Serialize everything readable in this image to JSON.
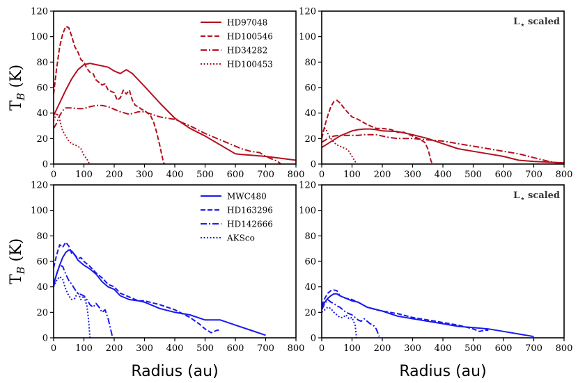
{
  "figure": {
    "xlabel": "Radius (au)",
    "ylabel_main": "T",
    "ylabel_sub": "B",
    "ylabel_unit": " (K)",
    "scaled_note": "L",
    "scaled_note_sub": "⋆",
    "scaled_note_suffix": " scaled"
  },
  "chart_data": [
    {
      "id": "top-left",
      "type": "line",
      "row": 0,
      "col": 0,
      "color": "#b3101e",
      "scaled": false,
      "show_legend": true,
      "xlim": [
        0,
        800
      ],
      "ylim": [
        0,
        120
      ],
      "xticks": [
        0,
        100,
        200,
        300,
        400,
        500,
        600,
        700,
        800
      ],
      "yticks": [
        0,
        20,
        40,
        60,
        80,
        100,
        120
      ],
      "series": [
        {
          "name": "HD97048",
          "dash": "solid",
          "x": [
            0,
            20,
            40,
            60,
            80,
            100,
            120,
            140,
            160,
            180,
            200,
            220,
            240,
            260,
            280,
            300,
            350,
            400,
            450,
            500,
            550,
            600,
            620,
            650,
            700,
            750,
            800
          ],
          "y": [
            38,
            48,
            58,
            67,
            74,
            78,
            79,
            78,
            77,
            76,
            73,
            71,
            74,
            71,
            66,
            61,
            48,
            36,
            28,
            22,
            15,
            8,
            7.5,
            7,
            6,
            4.5,
            3
          ]
        },
        {
          "name": "HD100546",
          "dash": "dashed",
          "x": [
            0,
            10,
            20,
            30,
            40,
            50,
            60,
            70,
            80,
            90,
            100,
            110,
            120,
            130,
            140,
            150,
            160,
            170,
            180,
            190,
            200,
            210,
            220,
            230,
            240,
            250,
            260,
            270,
            280,
            290,
            300,
            310,
            320,
            330,
            340,
            350,
            360,
            365
          ],
          "y": [
            55,
            75,
            92,
            102,
            108,
            107,
            100,
            92,
            88,
            82,
            80,
            75,
            72,
            71,
            66,
            64,
            62,
            63,
            58,
            57,
            56,
            50,
            52,
            58,
            55,
            58,
            50,
            46,
            45,
            43,
            42,
            40,
            38,
            33,
            25,
            15,
            4,
            0
          ]
        },
        {
          "name": "HD34282",
          "dash": "dashdot",
          "x": [
            0,
            10,
            20,
            30,
            40,
            60,
            80,
            100,
            120,
            140,
            160,
            180,
            200,
            220,
            250,
            280,
            300,
            350,
            400,
            450,
            500,
            550,
            600,
            620,
            650,
            680,
            700,
            720,
            740,
            750
          ],
          "y": [
            28,
            32,
            38,
            42,
            44,
            44,
            43.5,
            43.5,
            45,
            46,
            46,
            45,
            43,
            41,
            39,
            41,
            41,
            37,
            35,
            30,
            24,
            19,
            14,
            12,
            10,
            9,
            6,
            4,
            2,
            0
          ]
        },
        {
          "name": "HD100453",
          "dash": "dotted",
          "x": [
            0,
            5,
            10,
            15,
            20,
            25,
            30,
            40,
            50,
            60,
            70,
            80,
            90,
            100,
            110,
            115,
            120
          ],
          "y": [
            34,
            37,
            40,
            38,
            35,
            30,
            26,
            22,
            18,
            16,
            15,
            14,
            12,
            7,
            4,
            1.5,
            0
          ]
        }
      ]
    },
    {
      "id": "top-right",
      "type": "line",
      "row": 0,
      "col": 1,
      "color": "#b3101e",
      "scaled": true,
      "show_legend": false,
      "xlim": [
        0,
        800
      ],
      "ylim": [
        0,
        120
      ],
      "xticks": [
        0,
        100,
        200,
        300,
        400,
        500,
        600,
        700,
        800
      ],
      "yticks": [
        0,
        20,
        40,
        60,
        80,
        100,
        120
      ],
      "series": [
        {
          "name": "HD97048",
          "dash": "solid",
          "x": [
            0,
            20,
            40,
            60,
            80,
            100,
            120,
            140,
            160,
            180,
            200,
            250,
            300,
            350,
            400,
            450,
            500,
            550,
            600,
            650,
            700,
            750,
            800
          ],
          "y": [
            13,
            16,
            19,
            22,
            24,
            26,
            27,
            27.5,
            27.5,
            27,
            26,
            25.5,
            23,
            20,
            16,
            12,
            10,
            8,
            6,
            3,
            2,
            1.5,
            1
          ]
        },
        {
          "name": "HD100546",
          "dash": "dashed",
          "x": [
            0,
            10,
            20,
            30,
            40,
            50,
            60,
            80,
            100,
            120,
            150,
            180,
            200,
            230,
            250,
            270,
            300,
            320,
            340,
            350,
            355,
            360,
            365
          ],
          "y": [
            20,
            30,
            38,
            45,
            49,
            50,
            48,
            42,
            37,
            35,
            31,
            28,
            28,
            27,
            25,
            25,
            22,
            20,
            17,
            12,
            8,
            3,
            0
          ]
        },
        {
          "name": "HD34282",
          "dash": "dashdot",
          "x": [
            0,
            20,
            40,
            60,
            80,
            100,
            120,
            140,
            160,
            180,
            200,
            220,
            250,
            280,
            300,
            350,
            400,
            450,
            500,
            550,
            600,
            650,
            700,
            750,
            800
          ],
          "y": [
            17,
            20,
            22,
            22.5,
            22.5,
            22.5,
            22.5,
            23,
            23,
            23,
            22,
            21,
            20,
            20,
            20,
            19,
            18,
            16,
            14,
            12,
            10,
            8,
            5,
            2,
            0
          ]
        },
        {
          "name": "HD100453",
          "dash": "dotted",
          "x": [
            0,
            5,
            10,
            15,
            20,
            25,
            30,
            40,
            50,
            60,
            70,
            80,
            90,
            100,
            110,
            115
          ],
          "y": [
            23,
            26,
            28,
            27,
            24,
            22,
            20,
            17,
            15,
            14,
            13,
            12,
            10,
            6,
            2,
            0
          ]
        }
      ]
    },
    {
      "id": "bottom-left",
      "type": "line",
      "row": 1,
      "col": 0,
      "color": "#1a1aee",
      "scaled": false,
      "show_legend": true,
      "xlim": [
        0,
        800
      ],
      "ylim": [
        0,
        120
      ],
      "xticks": [
        0,
        100,
        200,
        300,
        400,
        500,
        600,
        700,
        800
      ],
      "yticks": [
        0,
        20,
        40,
        60,
        80,
        100,
        120
      ],
      "series": [
        {
          "name": "MWC480",
          "dash": "solid",
          "x": [
            0,
            10,
            20,
            30,
            40,
            50,
            60,
            70,
            80,
            100,
            120,
            140,
            160,
            180,
            200,
            220,
            250,
            280,
            300,
            350,
            400,
            450,
            500,
            550,
            600,
            650,
            700
          ],
          "y": [
            42,
            50,
            57,
            63,
            67,
            69,
            68,
            65,
            61,
            57,
            54,
            50,
            44,
            40,
            38,
            33,
            30,
            29,
            28,
            23,
            20,
            18,
            14,
            14,
            10,
            6,
            2
          ]
        },
        {
          "name": "HD163296",
          "dash": "dashed",
          "x": [
            0,
            10,
            20,
            30,
            40,
            50,
            60,
            70,
            80,
            90,
            100,
            120,
            140,
            160,
            180,
            200,
            220,
            250,
            280,
            300,
            350,
            400,
            450,
            480,
            500,
            520,
            540,
            550
          ],
          "y": [
            55,
            65,
            73,
            71,
            75,
            72,
            66,
            65,
            62,
            63,
            60,
            56,
            51,
            47,
            42,
            40,
            35,
            32,
            29,
            29,
            26,
            22,
            16,
            11,
            7,
            4,
            6,
            6
          ]
        },
        {
          "name": "HD142666",
          "dash": "dashdot",
          "x": [
            0,
            10,
            20,
            30,
            40,
            50,
            60,
            70,
            80,
            90,
            100,
            110,
            120,
            130,
            140,
            150,
            160,
            170,
            180,
            190,
            195
          ],
          "y": [
            40,
            50,
            57,
            56,
            50,
            45,
            42,
            38,
            35,
            34,
            33,
            30,
            26,
            24,
            27,
            24,
            20,
            22,
            15,
            5,
            0
          ]
        },
        {
          "name": "AKSco",
          "dash": "dotted",
          "x": [
            0,
            10,
            20,
            30,
            40,
            50,
            60,
            70,
            80,
            90,
            100,
            110,
            115,
            120
          ],
          "y": [
            40,
            45,
            48,
            46,
            38,
            33,
            30,
            31,
            36,
            30,
            33,
            25,
            15,
            0
          ]
        }
      ]
    },
    {
      "id": "bottom-right",
      "type": "line",
      "row": 1,
      "col": 1,
      "color": "#1a1aee",
      "scaled": true,
      "show_legend": false,
      "xlim": [
        0,
        800
      ],
      "ylim": [
        0,
        120
      ],
      "xticks": [
        0,
        100,
        200,
        300,
        400,
        500,
        600,
        700,
        800
      ],
      "yticks": [
        0,
        20,
        40,
        60,
        80,
        100,
        120
      ],
      "series": [
        {
          "name": "MWC480",
          "dash": "solid",
          "x": [
            0,
            10,
            20,
            30,
            40,
            50,
            60,
            80,
            100,
            120,
            150,
            200,
            250,
            300,
            350,
            400,
            450,
            500,
            550,
            600,
            650,
            700
          ],
          "y": [
            24,
            28,
            31,
            33,
            34.5,
            34.5,
            33,
            31,
            29,
            28,
            24,
            21,
            17,
            15,
            13,
            11,
            9,
            8,
            7,
            5,
            3,
            1
          ]
        },
        {
          "name": "HD163296",
          "dash": "dashed",
          "x": [
            0,
            10,
            20,
            30,
            40,
            50,
            60,
            80,
            100,
            120,
            150,
            180,
            200,
            250,
            300,
            350,
            400,
            450,
            500,
            520,
            540,
            550
          ],
          "y": [
            25,
            31,
            35,
            37,
            37.5,
            37,
            33,
            31,
            30,
            28,
            24,
            22,
            21,
            19,
            16,
            14,
            12,
            10,
            7,
            5,
            6,
            6
          ]
        },
        {
          "name": "HD142666",
          "dash": "dashdot",
          "x": [
            0,
            10,
            20,
            30,
            40,
            50,
            60,
            70,
            80,
            90,
            100,
            110,
            120,
            130,
            140,
            150,
            160,
            170,
            180,
            190
          ],
          "y": [
            22,
            27,
            30,
            28,
            27,
            25,
            24,
            22,
            20,
            19,
            18,
            16,
            14,
            13,
            15,
            13,
            11,
            10,
            7,
            1
          ]
        },
        {
          "name": "AKSco",
          "dash": "dotted",
          "x": [
            0,
            10,
            20,
            30,
            40,
            50,
            60,
            70,
            80,
            90,
            100,
            110,
            115
          ],
          "y": [
            20,
            22,
            24,
            23,
            20,
            18,
            16,
            16,
            18,
            15,
            16,
            10,
            0
          ]
        }
      ]
    }
  ]
}
